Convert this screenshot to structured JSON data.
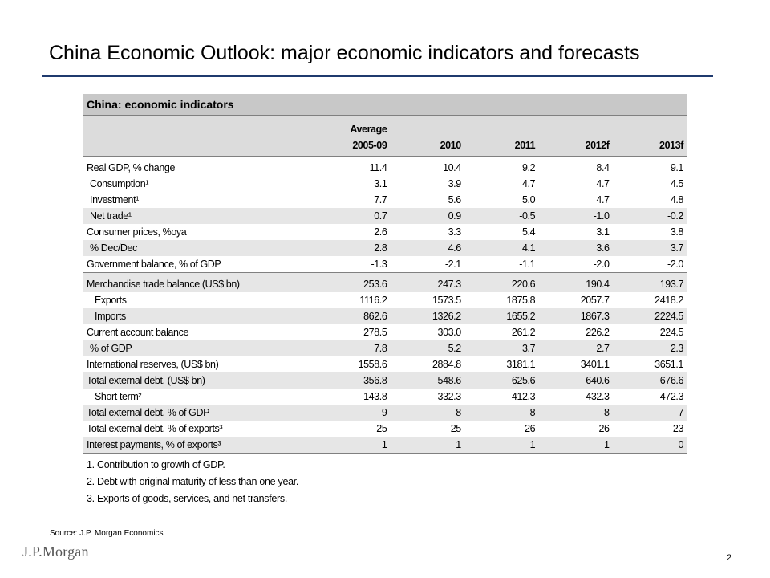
{
  "slide": {
    "title": "China Economic Outlook: major economic indicators and forecasts",
    "source": "Source: J.P. Morgan Economics",
    "logo_text": "J.P.Morgan",
    "page_number": "2",
    "colors": {
      "rule": "#1f3a6e",
      "header_fill": "#c8c8c8",
      "row_shade": "#e6e6e6"
    }
  },
  "table": {
    "title": "China: economic indicators",
    "header_top": [
      "",
      "Average",
      "",
      "",
      "",
      ""
    ],
    "columns": [
      "",
      "2005-09",
      "2010",
      "2011",
      "2012f",
      "2013f"
    ],
    "rows": [
      {
        "label": "Real GDP, % change",
        "values": [
          "11.4",
          "10.4",
          "9.2",
          "8.4",
          "9.1"
        ]
      },
      {
        "label": "Consumption¹",
        "values": [
          "3.1",
          "3.9",
          "4.7",
          "4.7",
          "4.5"
        ]
      },
      {
        "label": "Investment¹",
        "values": [
          "7.7",
          "5.6",
          "5.0",
          "4.7",
          "4.8"
        ]
      },
      {
        "label": "Net trade¹",
        "values": [
          "0.7",
          "0.9",
          "-0.5",
          "-1.0",
          "-0.2"
        ]
      },
      {
        "label": "Consumer prices, %oya",
        "values": [
          "2.6",
          "3.3",
          "5.4",
          "3.1",
          "3.8"
        ]
      },
      {
        "label": "% Dec/Dec",
        "values": [
          "2.8",
          "4.6",
          "4.1",
          "3.6",
          "3.7"
        ]
      },
      {
        "label": "Government balance, % of GDP",
        "values": [
          "-1.3",
          "-2.1",
          "-1.1",
          "-2.0",
          "-2.0"
        ]
      },
      {
        "label": "Merchandise trade balance (US$ bn)",
        "values": [
          "253.6",
          "247.3",
          "220.6",
          "190.4",
          "193.7"
        ]
      },
      {
        "label": "Exports",
        "values": [
          "1116.2",
          "1573.5",
          "1875.8",
          "2057.7",
          "2418.2"
        ]
      },
      {
        "label": "Imports",
        "values": [
          "862.6",
          "1326.2",
          "1655.2",
          "1867.3",
          "2224.5"
        ]
      },
      {
        "label": "Current account balance",
        "values": [
          "278.5",
          "303.0",
          "261.2",
          "226.2",
          "224.5"
        ]
      },
      {
        "label": "% of GDP",
        "values": [
          "7.8",
          "5.2",
          "3.7",
          "2.7",
          "2.3"
        ]
      },
      {
        "label": "International reserves, (US$ bn)",
        "values": [
          "1558.6",
          "2884.8",
          "3181.1",
          "3401.1",
          "3651.1"
        ]
      },
      {
        "label": "Total external debt, (US$ bn)",
        "values": [
          "356.8",
          "548.6",
          "625.6",
          "640.6",
          "676.6"
        ]
      },
      {
        "label": "Short term²",
        "values": [
          "143.8",
          "332.3",
          "412.3",
          "432.3",
          "472.3"
        ]
      },
      {
        "label": "Total external debt, % of GDP",
        "values": [
          "9",
          "8",
          "8",
          "8",
          "7"
        ]
      },
      {
        "label": "Total external debt, % of exports³",
        "values": [
          "25",
          "25",
          "26",
          "26",
          "23"
        ]
      },
      {
        "label": "Interest payments, % of exports³",
        "values": [
          "1",
          "1",
          "1",
          "1",
          "0"
        ]
      }
    ],
    "footnotes": [
      "1. Contribution to growth of GDP.",
      "2. Debt with original maturity of less than one year.",
      "3. Exports of goods, services, and net transfers."
    ]
  }
}
